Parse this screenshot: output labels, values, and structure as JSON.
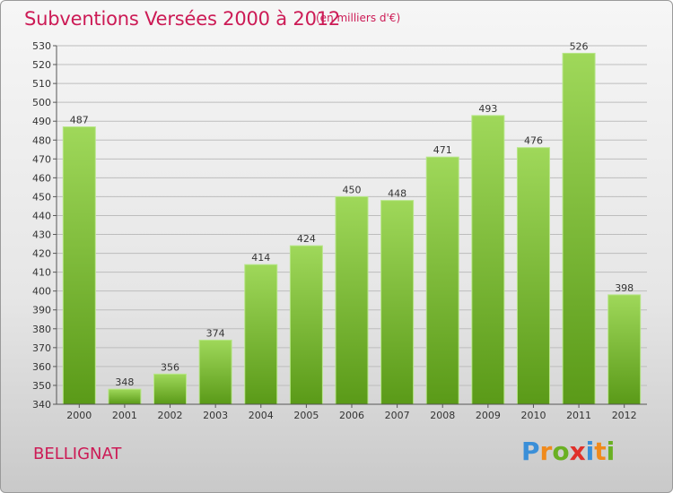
{
  "title": "Subventions Versées 2000 à 2012",
  "unit_note": "(en milliers d'€)",
  "commune": "BELLIGNAT",
  "logo": {
    "letters": [
      "P",
      "r",
      "o",
      "x",
      "i",
      "t",
      "i"
    ],
    "colors": [
      "#3a8fd8",
      "#f08a1c",
      "#6ab023",
      "#e0302a",
      "#3a8fd8",
      "#f08a1c",
      "#6ab023"
    ]
  },
  "colors": {
    "bar_top": "#9fd85a",
    "bar_bottom": "#5a9a18",
    "text_accent": "#cc1a55"
  },
  "chart_data": {
    "type": "bar",
    "categories": [
      "2000",
      "2001",
      "2002",
      "2003",
      "2004",
      "2005",
      "2006",
      "2007",
      "2008",
      "2009",
      "2010",
      "2011",
      "2012"
    ],
    "values": [
      487,
      348,
      356,
      374,
      414,
      424,
      450,
      448,
      471,
      493,
      476,
      526,
      398
    ],
    "ylim": [
      340,
      530
    ],
    "yticks": [
      340,
      350,
      360,
      370,
      380,
      390,
      400,
      410,
      420,
      430,
      440,
      450,
      460,
      470,
      480,
      490,
      500,
      510,
      520,
      530
    ],
    "grid": true,
    "data_labels": true
  }
}
